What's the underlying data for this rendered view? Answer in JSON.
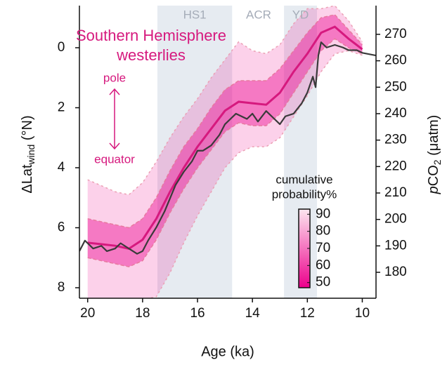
{
  "chart_data": {
    "type": "line",
    "title_lines": [
      "Southern Hemisphere",
      "westerlies"
    ],
    "xlabel": "Age (ka)",
    "ylabel": {
      "main": "ΔLat",
      "sub": "wind",
      "unit": " (°N)"
    },
    "y2label": {
      "italic": "p",
      "main": "CO",
      "sub": "2",
      "unit": " (μatm)"
    },
    "xlim": [
      20.3,
      9.5
    ],
    "xticks": [
      20,
      18,
      16,
      14,
      12,
      10
    ],
    "ylim": [
      8.35,
      -1.24
    ],
    "yticks": [
      0,
      2,
      4,
      6,
      8
    ],
    "y2lim": [
      170.2,
      279
    ],
    "y2ticks": [
      180,
      190,
      200,
      210,
      220,
      230,
      240,
      250,
      260,
      270
    ],
    "periods": [
      {
        "label": "HS1",
        "start": 17.46,
        "end": 14.74,
        "shaded": true
      },
      {
        "label": "ACR",
        "start": 14.7,
        "end": 12.85,
        "shaded": false
      },
      {
        "label": "YD",
        "start": 12.85,
        "end": 11.65,
        "shaded": true
      }
    ],
    "direction_labels": {
      "up": "pole",
      "down": "equator"
    },
    "westerlies": {
      "color": "#d6197e",
      "x": [
        20,
        19.5,
        19,
        18.5,
        18,
        17.5,
        17,
        16.5,
        16,
        15.5,
        15,
        14.5,
        14,
        13.5,
        13,
        12.5,
        12,
        11.5,
        11,
        10.5,
        10
      ],
      "median": [
        6.5,
        6.55,
        6.6,
        6.7,
        6.4,
        5.7,
        4.8,
        4.0,
        3.3,
        2.7,
        2.1,
        1.8,
        1.85,
        1.9,
        1.5,
        0.8,
        0.2,
        -0.5,
        -0.7,
        -0.3,
        0.05
      ],
      "inner_upper": [
        5.7,
        5.8,
        5.9,
        6.0,
        5.7,
        5.0,
        4.1,
        3.3,
        2.7,
        2.0,
        1.4,
        1.1,
        1.1,
        1.1,
        0.7,
        0.1,
        -0.5,
        -1.0,
        -1.1,
        -0.6,
        -0.1
      ],
      "inner_lower": [
        7.0,
        7.1,
        7.2,
        7.3,
        7.1,
        6.4,
        5.5,
        4.7,
        4.0,
        3.4,
        2.8,
        2.5,
        2.6,
        2.6,
        2.2,
        1.5,
        0.8,
        0.1,
        -0.3,
        0.0,
        0.2
      ],
      "outer_upper": [
        4.4,
        4.6,
        4.8,
        4.9,
        4.5,
        3.8,
        3.0,
        2.3,
        1.7,
        1.0,
        0.4,
        -0.2,
        0.1,
        0.2,
        -0.1,
        -0.8,
        -1.3,
        -1.3,
        -1.4,
        -0.9,
        -0.2
      ],
      "outer_lower": [
        8.4,
        8.45,
        8.5,
        8.5,
        8.4,
        8.3,
        7.5,
        6.5,
        5.6,
        4.8,
        4.0,
        3.5,
        3.3,
        3.3,
        3.0,
        2.3,
        1.6,
        0.8,
        0.2,
        0.1,
        0.25
      ]
    },
    "co2": {
      "color": "#3a3a3a",
      "axis": "y2",
      "x": [
        20.3,
        20.1,
        20.0,
        19.8,
        19.5,
        19.3,
        19.0,
        18.8,
        18.5,
        18.2,
        18.0,
        17.8,
        17.5,
        17.2,
        17.0,
        16.8,
        16.5,
        16.2,
        16.0,
        15.8,
        15.5,
        15.2,
        15.0,
        14.8,
        14.6,
        14.4,
        14.2,
        14.0,
        13.8,
        13.5,
        13.2,
        13.0,
        12.8,
        12.5,
        12.2,
        12.0,
        11.8,
        11.7,
        11.6,
        11.5,
        11.3,
        11.0,
        10.7,
        10.5,
        10.2,
        10.0,
        9.5
      ],
      "values": [
        188,
        192,
        191,
        189,
        190,
        188,
        189,
        191,
        189,
        187,
        188,
        192,
        197,
        203,
        208,
        213,
        218,
        222,
        226,
        226,
        228,
        232,
        236,
        238,
        240,
        239,
        238,
        240,
        237,
        241,
        238,
        236,
        239,
        240,
        244,
        248,
        254,
        250,
        262,
        267,
        265,
        266,
        265,
        264,
        264,
        263,
        262
      ]
    },
    "colorbar": {
      "title_lines": [
        "cumulative",
        "probability%"
      ],
      "lim": [
        47,
        93
      ],
      "ticks": [
        90,
        80,
        70,
        60,
        50
      ],
      "colors": [
        "#ec008c",
        "#fde6f0"
      ]
    }
  }
}
